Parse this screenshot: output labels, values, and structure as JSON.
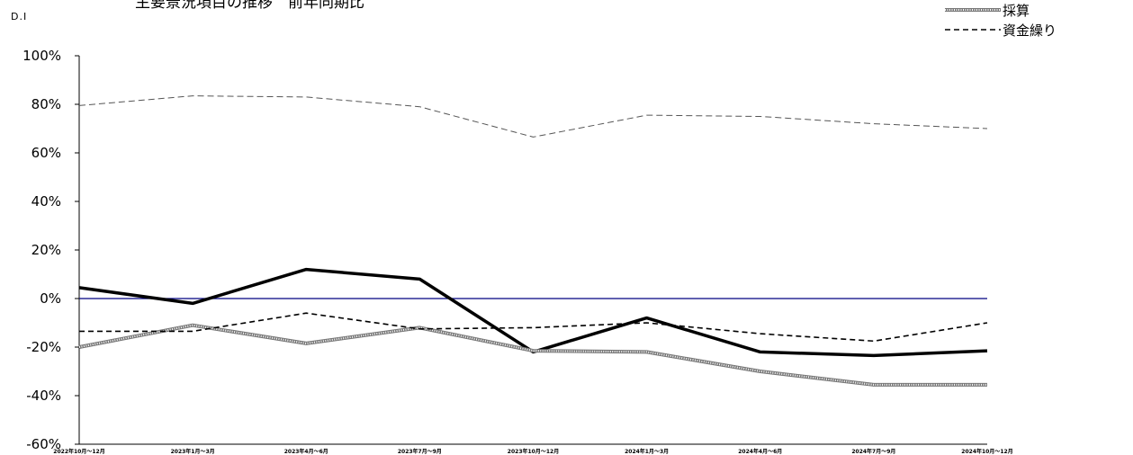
{
  "chart_data": {
    "type": "line",
    "title": "主要景況項目の推移　前年同期比",
    "ylabel": "D.I",
    "ylim": [
      -60,
      100
    ],
    "yticks": [
      "100%",
      "80%",
      "60%",
      "40%",
      "20%",
      "0%",
      "-20%",
      "-40%",
      "-60%"
    ],
    "categories": [
      "2022年10月～12月",
      "2023年1月～3月",
      "2023年4月～6月",
      "2023年7月～9月",
      "2023年10月～12月",
      "2024年1月～3月",
      "2024年4月～6月",
      "2024年7月～9月",
      "2024年10月～12月"
    ],
    "series": [
      {
        "name": "",
        "style": "dashed-gray",
        "values": [
          79.5,
          83.5,
          83,
          79,
          66.5,
          75.5,
          75,
          72,
          70
        ]
      },
      {
        "name": "",
        "style": "solid-bold",
        "values": [
          4.5,
          -2,
          12,
          8,
          -22,
          -8,
          -22,
          -23.5,
          -21.5
        ]
      },
      {
        "name": "採算",
        "style": "hatched",
        "values": [
          -20,
          -11,
          -18.5,
          -12,
          -21.5,
          -22,
          -30,
          -35.5,
          -35.5
        ]
      },
      {
        "name": "資金繰り",
        "style": "dashed-black",
        "values": [
          -13.5,
          -13.5,
          -6,
          -12.5,
          -12,
          -10,
          -14.5,
          -17.5,
          -10
        ]
      }
    ],
    "zero_line_color": "#000080",
    "grid": false,
    "legend_position": "top-right"
  }
}
